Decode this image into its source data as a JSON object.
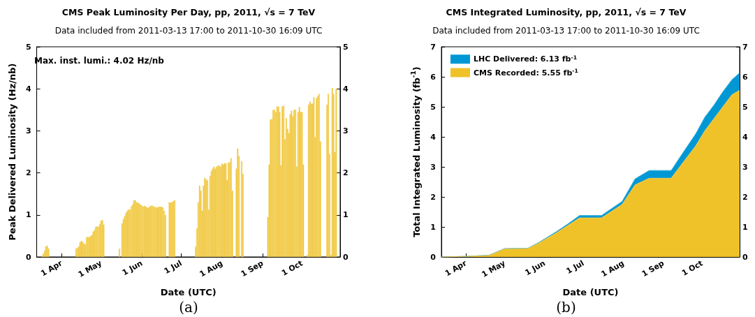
{
  "chart_data": [
    {
      "type": "bar",
      "title": "CMS Peak Luminosity Per Day, pp, 2011, √s = 7 TeV",
      "subtitle": "Data included from 2011-03-13 17:00 to 2011-10-30 16:09 UTC",
      "xlabel": "Date (UTC)",
      "ylabel": "Peak Delivered Luminosity (Hz/nb)",
      "annotations": [
        "Max. inst. lumi.: 4.02 Hz/nb",
        "(a)"
      ],
      "x": [
        "2011-03-17",
        "2011-03-18",
        "2011-03-19",
        "2011-03-20",
        "2011-03-21",
        "2011-03-22",
        "2011-04-12",
        "2011-04-13",
        "2011-04-14",
        "2011-04-15",
        "2011-04-16",
        "2011-04-17",
        "2011-04-18",
        "2011-04-19",
        "2011-04-20",
        "2011-04-21",
        "2011-04-22",
        "2011-04-23",
        "2011-04-24",
        "2011-04-25",
        "2011-04-26",
        "2011-04-27",
        "2011-04-28",
        "2011-04-29",
        "2011-04-30",
        "2011-05-01",
        "2011-05-02",
        "2011-05-03",
        "2011-05-15",
        "2011-05-17",
        "2011-05-18",
        "2011-05-19",
        "2011-05-20",
        "2011-05-21",
        "2011-05-22",
        "2011-05-23",
        "2011-05-24",
        "2011-05-25",
        "2011-05-26",
        "2011-05-27",
        "2011-05-28",
        "2011-05-29",
        "2011-05-30",
        "2011-05-31",
        "2011-06-01",
        "2011-06-02",
        "2011-06-03",
        "2011-06-04",
        "2011-06-05",
        "2011-06-06",
        "2011-06-07",
        "2011-06-08",
        "2011-06-09",
        "2011-06-10",
        "2011-06-11",
        "2011-06-12",
        "2011-06-13",
        "2011-06-14",
        "2011-06-15",
        "2011-06-16",
        "2011-06-17",
        "2011-06-18",
        "2011-06-19",
        "2011-06-22",
        "2011-06-23",
        "2011-06-24",
        "2011-06-25",
        "2011-06-26",
        "2011-07-12",
        "2011-07-13",
        "2011-07-14",
        "2011-07-15",
        "2011-07-16",
        "2011-07-17",
        "2011-07-18",
        "2011-07-19",
        "2011-07-20",
        "2011-07-21",
        "2011-07-22",
        "2011-07-23",
        "2011-07-24",
        "2011-07-25",
        "2011-07-26",
        "2011-07-27",
        "2011-07-28",
        "2011-07-29",
        "2011-07-30",
        "2011-07-31",
        "2011-08-01",
        "2011-08-02",
        "2011-08-03",
        "2011-08-04",
        "2011-08-05",
        "2011-08-06",
        "2011-08-07",
        "2011-08-08",
        "2011-08-09",
        "2011-08-12",
        "2011-08-13",
        "2011-08-14",
        "2011-08-16",
        "2011-08-17",
        "2011-09-05",
        "2011-09-06",
        "2011-09-07",
        "2011-09-08",
        "2011-09-09",
        "2011-09-10",
        "2011-09-11",
        "2011-09-12",
        "2011-09-13",
        "2011-09-14",
        "2011-09-15",
        "2011-09-16",
        "2011-09-17",
        "2011-09-18",
        "2011-09-19",
        "2011-09-20",
        "2011-09-21",
        "2011-09-22",
        "2011-09-23",
        "2011-09-24",
        "2011-09-25",
        "2011-09-26",
        "2011-09-27",
        "2011-09-28",
        "2011-09-29",
        "2011-09-30",
        "2011-10-01",
        "2011-10-02",
        "2011-10-05",
        "2011-10-06",
        "2011-10-07",
        "2011-10-08",
        "2011-10-09",
        "2011-10-10",
        "2011-10-11",
        "2011-10-12",
        "2011-10-13",
        "2011-10-14",
        "2011-10-15",
        "2011-10-20",
        "2011-10-21",
        "2011-10-22",
        "2011-10-23",
        "2011-10-24",
        "2011-10-25",
        "2011-10-26",
        "2011-10-27"
      ],
      "values": [
        0.03,
        0.08,
        0.15,
        0.25,
        0.27,
        0.2,
        0.2,
        0.22,
        0.25,
        0.35,
        0.38,
        0.36,
        0.32,
        0.3,
        0.47,
        0.48,
        0.47,
        0.5,
        0.52,
        0.6,
        0.64,
        0.72,
        0.73,
        0.72,
        0.78,
        0.86,
        0.88,
        0.77,
        0.2,
        0.8,
        0.9,
        0.97,
        1.05,
        1.1,
        1.13,
        1.12,
        1.2,
        1.25,
        1.35,
        1.35,
        1.3,
        1.3,
        1.27,
        1.25,
        1.22,
        1.2,
        1.22,
        1.2,
        1.18,
        1.17,
        1.2,
        1.22,
        1.22,
        1.2,
        1.19,
        1.18,
        1.18,
        1.2,
        1.19,
        1.2,
        1.18,
        1.1,
        1.0,
        1.3,
        1.3,
        1.3,
        1.33,
        1.35,
        0.25,
        0.68,
        1.3,
        1.7,
        1.58,
        1.1,
        1.7,
        1.88,
        1.84,
        1.83,
        1.13,
        1.93,
        2.05,
        2.1,
        2.15,
        2.1,
        2.15,
        2.17,
        2.18,
        2.15,
        2.22,
        2.2,
        2.23,
        2.23,
        1.83,
        2.25,
        2.25,
        2.35,
        1.58,
        2.1,
        2.58,
        2.4,
        2.28,
        1.98,
        0.95,
        2.2,
        3.27,
        3.28,
        3.5,
        3.5,
        3.45,
        3.58,
        3.58,
        3.45,
        2.18,
        3.58,
        3.6,
        2.8,
        3.3,
        3.05,
        2.95,
        3.4,
        3.48,
        3.35,
        3.5,
        3.5,
        2.15,
        3.45,
        3.57,
        3.45,
        3.45,
        2.2,
        0.05,
        3.62,
        3.7,
        3.65,
        3.65,
        3.8,
        2.85,
        3.78,
        3.83,
        3.88,
        2.75,
        3.62,
        3.88,
        2.45,
        0.05,
        4.02,
        3.88,
        2.5,
        4.0
      ],
      "color": "#f0c229",
      "xlim": [
        "2011-03-13",
        "2011-10-30"
      ],
      "xticks": [
        {
          "value": "2011-04-01",
          "label": "1 Apr"
        },
        {
          "value": "2011-05-01",
          "label": "1 May"
        },
        {
          "value": "2011-06-01",
          "label": "1 Jun"
        },
        {
          "value": "2011-07-01",
          "label": "1 Jul"
        },
        {
          "value": "2011-08-01",
          "label": "1 Aug"
        },
        {
          "value": "2011-09-01",
          "label": "1 Sep"
        },
        {
          "value": "2011-10-01",
          "label": "1 Oct"
        }
      ],
      "ylim": [
        0,
        5
      ],
      "yticks": [
        0,
        1,
        2,
        3,
        4,
        5
      ],
      "y2lim": [
        0,
        5
      ],
      "y2ticks": [
        0,
        1,
        2,
        3,
        4,
        5
      ]
    },
    {
      "type": "area",
      "title": "CMS Integrated Luminosity, pp, 2011, √s = 7 TeV",
      "subtitle": "Data included from 2011-03-13 17:00 to 2011-10-30 16:09 UTC",
      "xlabel": "Date (UTC)",
      "ylabel": "Total Integrated Luminosity (fb$^{-1}$)",
      "annotations": [
        "(b)"
      ],
      "x": [
        "2011-03-13",
        "2011-04-01",
        "2011-04-19",
        "2011-05-01",
        "2011-05-19",
        "2011-05-27",
        "2011-06-10",
        "2011-06-19",
        "2011-06-28",
        "2011-07-15",
        "2011-07-31",
        "2011-08-10",
        "2011-08-21",
        "2011-09-07",
        "2011-09-15",
        "2011-09-26",
        "2011-10-03",
        "2011-10-10",
        "2011-10-17",
        "2011-10-24",
        "2011-10-30"
      ],
      "series": [
        {
          "name": "LHC Delivered: 6.13 fb$^{-1}$",
          "color": "#0098d4",
          "values": [
            0,
            0.02,
            0.06,
            0.28,
            0.29,
            0.47,
            0.84,
            1.1,
            1.38,
            1.38,
            1.85,
            2.6,
            2.88,
            2.88,
            3.4,
            4.1,
            4.65,
            5.05,
            5.5,
            5.9,
            6.13
          ]
        },
        {
          "name": "CMS Recorded: 5.55 fb$^{-1}$",
          "color": "#f0c229",
          "values": [
            0,
            0.02,
            0.05,
            0.27,
            0.28,
            0.45,
            0.8,
            1.05,
            1.3,
            1.3,
            1.75,
            2.4,
            2.62,
            2.62,
            3.08,
            3.7,
            4.2,
            4.6,
            5.0,
            5.4,
            5.55
          ]
        }
      ],
      "legend": "top left",
      "xlim": [
        "2011-03-13",
        "2011-10-30"
      ],
      "xticks": [
        {
          "value": "2011-04-01",
          "label": "1 Apr"
        },
        {
          "value": "2011-05-01",
          "label": "1 May"
        },
        {
          "value": "2011-06-01",
          "label": "1 Jun"
        },
        {
          "value": "2011-07-01",
          "label": "1 Jul"
        },
        {
          "value": "2011-08-01",
          "label": "1 Aug"
        },
        {
          "value": "2011-09-01",
          "label": "1 Sep"
        },
        {
          "value": "2011-10-01",
          "label": "1 Oct"
        }
      ],
      "ylim": [
        0,
        7
      ],
      "yticks": [
        0,
        1,
        2,
        3,
        4,
        5,
        6,
        7
      ],
      "y2lim": [
        0,
        7
      ],
      "y2ticks": [
        0,
        1,
        2,
        3,
        4,
        5,
        6,
        7
      ]
    }
  ]
}
